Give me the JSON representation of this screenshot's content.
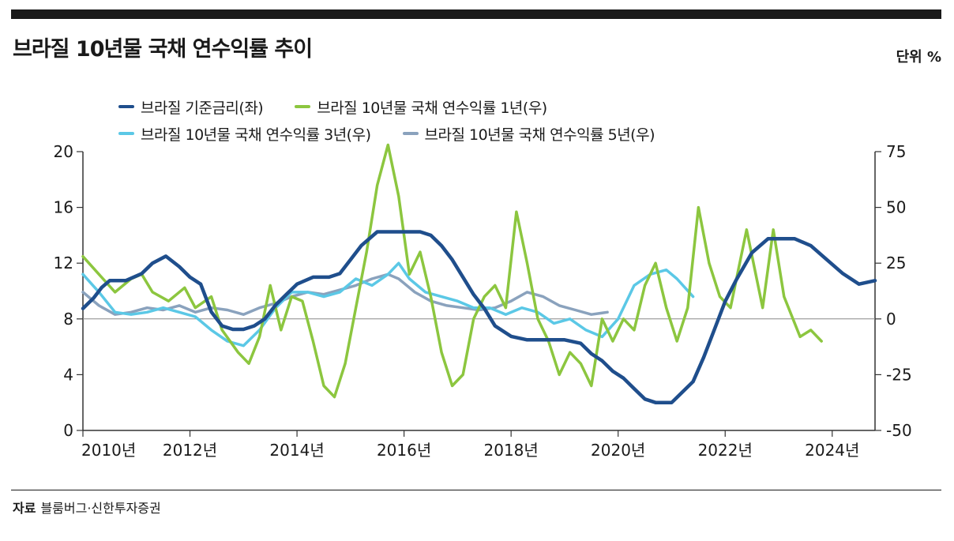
{
  "title": "브라질 10년물 국채 연수익률 추이",
  "unit_label": "단위 %",
  "source_label": "자료",
  "source_text": "블룸버그·신한투자증권",
  "colors": {
    "policy_rate": "#1f4e8c",
    "y1": "#8cc63f",
    "y3": "#5bc8e6",
    "y5": "#8aa2bd",
    "axis": "#333333",
    "zero_line": "#888888"
  },
  "chart_data": {
    "type": "line",
    "title": "브라질 10년물 국채 연수익률 추이",
    "xlabel": "",
    "ylabel": "",
    "x_ticks": [
      "2010년",
      "2012년",
      "2014년",
      "2016년",
      "2018년",
      "2020년",
      "2022년",
      "2024년"
    ],
    "xlim": [
      2010,
      2024.8
    ],
    "y_left": {
      "lim": [
        0,
        20
      ],
      "ticks": [
        "0",
        "4",
        "8",
        "12",
        "16",
        "20"
      ]
    },
    "y_right": {
      "lim": [
        -50,
        75
      ],
      "ticks": [
        "75",
        "50",
        "25",
        "0",
        "-25",
        "-50"
      ]
    },
    "legend_position": "top-left",
    "grid": false,
    "series": [
      {
        "key": "policy_rate",
        "name": "브라질 기준금리(좌)",
        "axis": "left",
        "x": [
          2010.0,
          2010.2,
          2010.35,
          2010.5,
          2010.8,
          2011.1,
          2011.3,
          2011.55,
          2011.8,
          2012.0,
          2012.2,
          2012.4,
          2012.6,
          2012.8,
          2013.0,
          2013.2,
          2013.4,
          2013.6,
          2013.8,
          2014.0,
          2014.3,
          2014.6,
          2014.8,
          2015.0,
          2015.2,
          2015.5,
          2016.0,
          2016.3,
          2016.5,
          2016.7,
          2016.9,
          2017.1,
          2017.3,
          2017.5,
          2017.7,
          2018.0,
          2018.3,
          2018.6,
          2019.0,
          2019.3,
          2019.5,
          2019.7,
          2019.9,
          2020.1,
          2020.3,
          2020.5,
          2020.7,
          2021.0,
          2021.2,
          2021.4,
          2021.6,
          2021.8,
          2022.0,
          2022.2,
          2022.5,
          2022.8,
          2023.0,
          2023.3,
          2023.6,
          2023.9,
          2024.2,
          2024.5,
          2024.8
        ],
        "values": [
          8.75,
          9.5,
          10.25,
          10.75,
          10.75,
          11.25,
          12.0,
          12.5,
          11.75,
          11.0,
          10.5,
          8.5,
          7.5,
          7.25,
          7.25,
          7.5,
          8.0,
          9.0,
          9.75,
          10.5,
          11.0,
          11.0,
          11.25,
          12.25,
          13.25,
          14.25,
          14.25,
          14.25,
          14.0,
          13.25,
          12.25,
          11.0,
          9.75,
          8.75,
          7.5,
          6.75,
          6.5,
          6.5,
          6.5,
          6.25,
          5.5,
          5.0,
          4.25,
          3.75,
          3.0,
          2.25,
          2.0,
          2.0,
          2.75,
          3.5,
          5.25,
          7.25,
          9.25,
          10.75,
          12.75,
          13.75,
          13.75,
          13.75,
          13.25,
          12.25,
          11.25,
          10.5,
          10.75
        ]
      },
      {
        "key": "y1",
        "name": "브라질 10년물 국채 연수익률 1년(우)",
        "axis": "right",
        "x": [
          2010.0,
          2010.3,
          2010.6,
          2010.9,
          2011.1,
          2011.3,
          2011.6,
          2011.9,
          2012.1,
          2012.4,
          2012.6,
          2012.9,
          2013.1,
          2013.3,
          2013.5,
          2013.7,
          2013.9,
          2014.1,
          2014.3,
          2014.5,
          2014.7,
          2014.9,
          2015.1,
          2015.3,
          2015.5,
          2015.7,
          2015.9,
          2016.1,
          2016.3,
          2016.5,
          2016.7,
          2016.9,
          2017.1,
          2017.3,
          2017.5,
          2017.7,
          2017.9,
          2018.1,
          2018.3,
          2018.5,
          2018.7,
          2018.9,
          2019.1,
          2019.3,
          2019.5,
          2019.7,
          2019.9,
          2020.1,
          2020.3,
          2020.5,
          2020.7,
          2020.9,
          2021.1,
          2021.3,
          2021.5,
          2021.7,
          2021.9,
          2022.1,
          2022.4,
          2022.7,
          2022.9,
          2023.1,
          2023.4,
          2023.6,
          2023.8
        ],
        "values": [
          28,
          20,
          12,
          18,
          20,
          12,
          8,
          14,
          5,
          10,
          -5,
          -15,
          -20,
          -8,
          15,
          -5,
          10,
          8,
          -10,
          -30,
          -35,
          -20,
          5,
          30,
          60,
          78,
          55,
          20,
          30,
          10,
          -15,
          -30,
          -25,
          0,
          10,
          15,
          5,
          48,
          25,
          0,
          -10,
          -25,
          -15,
          -20,
          -30,
          0,
          -10,
          0,
          -5,
          15,
          25,
          5,
          -10,
          5,
          50,
          25,
          10,
          5,
          40,
          5,
          40,
          10,
          -8,
          -5,
          -10
        ]
      },
      {
        "key": "y3",
        "name": "브라질 10년물 국채 연수익률 3년(우)",
        "axis": "right",
        "x": [
          2010.0,
          2010.3,
          2010.6,
          2010.9,
          2011.2,
          2011.5,
          2011.8,
          2012.1,
          2012.4,
          2012.7,
          2013.0,
          2013.3,
          2013.6,
          2013.9,
          2014.2,
          2014.5,
          2014.8,
          2015.1,
          2015.4,
          2015.7,
          2015.9,
          2016.1,
          2016.4,
          2016.7,
          2017.0,
          2017.3,
          2017.6,
          2017.9,
          2018.2,
          2018.5,
          2018.8,
          2019.1,
          2019.4,
          2019.7,
          2020.0,
          2020.3,
          2020.6,
          2020.9,
          2021.1,
          2021.4
        ],
        "values": [
          20,
          12,
          3,
          2,
          3,
          5,
          3,
          1,
          -5,
          -10,
          -12,
          -5,
          5,
          12,
          12,
          10,
          12,
          18,
          15,
          20,
          25,
          18,
          12,
          10,
          8,
          5,
          5,
          2,
          5,
          3,
          -2,
          0,
          -5,
          -8,
          0,
          15,
          20,
          22,
          18,
          10
        ]
      },
      {
        "key": "y5",
        "name": "브라질 10년물 국채 연수익률 5년(우)",
        "axis": "right",
        "x": [
          2010.0,
          2010.3,
          2010.6,
          2010.9,
          2011.2,
          2011.5,
          2011.8,
          2012.1,
          2012.4,
          2012.7,
          2013.0,
          2013.3,
          2013.6,
          2013.9,
          2014.2,
          2014.5,
          2014.8,
          2015.1,
          2015.4,
          2015.7,
          2015.9,
          2016.2,
          2016.5,
          2016.8,
          2017.1,
          2017.4,
          2017.7,
          2018.0,
          2018.3,
          2018.6,
          2018.9,
          2019.2,
          2019.5,
          2019.8
        ],
        "values": [
          12,
          6,
          2,
          3,
          5,
          4,
          6,
          3,
          5,
          4,
          2,
          5,
          7,
          10,
          12,
          11,
          13,
          15,
          18,
          20,
          18,
          12,
          8,
          6,
          5,
          4,
          5,
          8,
          12,
          10,
          6,
          4,
          2,
          3
        ]
      }
    ]
  }
}
